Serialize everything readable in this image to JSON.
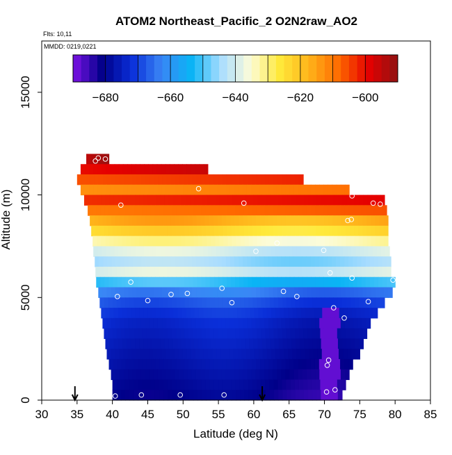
{
  "chart_data": {
    "type": "heatmap",
    "title": "ATOM2 Northeast_Pacific_2 O2N2raw_AO2",
    "annotations": [
      "Flts: 10,11",
      "MMDD: 0219,0221"
    ],
    "xlabel": "Latitude (deg N)",
    "ylabel": "Altitude (m)",
    "xlim": [
      30,
      85
    ],
    "ylim": [
      0,
      17500
    ],
    "xticks": [
      30,
      35,
      40,
      45,
      50,
      55,
      60,
      65,
      70,
      75,
      80,
      85
    ],
    "yticks": [
      0,
      5000,
      10000,
      15000
    ],
    "colorbar": {
      "range": [
        -690,
        -590
      ],
      "ticks": [
        -680,
        -660,
        -640,
        -620,
        -600
      ],
      "stops": [
        "#7d12e6",
        "#000089",
        "#0a2fd9",
        "#3a86f5",
        "#0ab4f5",
        "#a8dcff",
        "#fcfcd9",
        "#ffe93a",
        "#ffb31a",
        "#ff6a00",
        "#e50000",
        "#8f1212"
      ]
    },
    "profiles": [
      {
        "alt": 11750,
        "lat_min": 36.3,
        "lat_max": 39.5,
        "value": -595
      },
      {
        "alt": 11250,
        "lat_min": 35.5,
        "lat_max": 53.5,
        "value": -600
      },
      {
        "alt": 10750,
        "lat_min": 35.0,
        "lat_max": 67.0,
        "value": -606
      },
      {
        "alt": 10250,
        "lat_min": 35.5,
        "lat_max": 73.5,
        "value": -613
      },
      {
        "alt": 9750,
        "lat_min": 36.0,
        "lat_max": 78.5,
        "value": -603
      },
      {
        "alt": 9250,
        "lat_min": 36.5,
        "lat_max": 78.8,
        "value": -610
      },
      {
        "alt": 8750,
        "lat_min": 36.8,
        "lat_max": 79.0,
        "value": -617
      },
      {
        "alt": 8250,
        "lat_min": 37.0,
        "lat_max": 79.0,
        "value": -624
      },
      {
        "alt": 7750,
        "lat_min": 37.2,
        "lat_max": 79.0,
        "value": -633
      },
      {
        "alt": 7250,
        "lat_min": 37.3,
        "lat_max": 79.2,
        "value": -640
      },
      {
        "alt": 6750,
        "lat_min": 37.5,
        "lat_max": 79.4,
        "value": -645
      },
      {
        "alt": 6250,
        "lat_min": 37.6,
        "lat_max": 79.4,
        "value": -640
      },
      {
        "alt": 5750,
        "lat_min": 37.7,
        "lat_max": 80.0,
        "value": -652
      },
      {
        "alt": 5250,
        "lat_min": 38.0,
        "lat_max": 79.6,
        "value": -662
      },
      {
        "alt": 4750,
        "lat_min": 38.2,
        "lat_max": 78.5,
        "value": -667
      },
      {
        "alt": 4250,
        "lat_min": 38.4,
        "lat_max": 77.5,
        "value": -670
      },
      {
        "alt": 3750,
        "lat_min": 38.6,
        "lat_max": 76.5,
        "value": -672
      },
      {
        "alt": 3250,
        "lat_min": 38.8,
        "lat_max": 76.0,
        "value": -673
      },
      {
        "alt": 2750,
        "lat_min": 39.0,
        "lat_max": 75.5,
        "value": -674
      },
      {
        "alt": 2250,
        "lat_min": 39.2,
        "lat_max": 75.0,
        "value": -675
      },
      {
        "alt": 1750,
        "lat_min": 39.5,
        "lat_max": 74.0,
        "value": -676
      },
      {
        "alt": 1250,
        "lat_min": 39.8,
        "lat_max": 73.5,
        "value": -677
      },
      {
        "alt": 750,
        "lat_min": 40.0,
        "lat_max": 73.0,
        "value": -678
      },
      {
        "alt": 250,
        "lat_min": 40.0,
        "lat_max": 72.5,
        "value": -679
      }
    ],
    "samples": [
      {
        "lat": 37.6,
        "alt": 11650
      },
      {
        "lat": 38.0,
        "alt": 11800
      },
      {
        "lat": 39.0,
        "alt": 11750
      },
      {
        "lat": 52.2,
        "alt": 10300
      },
      {
        "lat": 67.8,
        "alt": 10650
      },
      {
        "lat": 73.9,
        "alt": 9950
      },
      {
        "lat": 41.2,
        "alt": 9500
      },
      {
        "lat": 58.6,
        "alt": 9600
      },
      {
        "lat": 76.9,
        "alt": 9600
      },
      {
        "lat": 77.9,
        "alt": 9550
      },
      {
        "lat": 73.3,
        "alt": 8750
      },
      {
        "lat": 73.8,
        "alt": 8800
      },
      {
        "lat": 63.3,
        "alt": 7650
      },
      {
        "lat": 60.3,
        "alt": 7250
      },
      {
        "lat": 69.9,
        "alt": 7300
      },
      {
        "lat": 70.8,
        "alt": 6200
      },
      {
        "lat": 73.9,
        "alt": 5950
      },
      {
        "lat": 79.7,
        "alt": 5850
      },
      {
        "lat": 42.6,
        "alt": 5750
      },
      {
        "lat": 55.5,
        "alt": 5450
      },
      {
        "lat": 64.2,
        "alt": 5300
      },
      {
        "lat": 50.6,
        "alt": 5200
      },
      {
        "lat": 48.3,
        "alt": 5150
      },
      {
        "lat": 66.1,
        "alt": 5050
      },
      {
        "lat": 40.7,
        "alt": 5050
      },
      {
        "lat": 45.0,
        "alt": 4850
      },
      {
        "lat": 56.9,
        "alt": 4750
      },
      {
        "lat": 76.2,
        "alt": 4800
      },
      {
        "lat": 71.3,
        "alt": 4500
      },
      {
        "lat": 72.8,
        "alt": 4000
      },
      {
        "lat": 70.6,
        "alt": 1950
      },
      {
        "lat": 70.4,
        "alt": 1700
      },
      {
        "lat": 70.3,
        "alt": 400
      },
      {
        "lat": 71.5,
        "alt": 500
      },
      {
        "lat": 40.4,
        "alt": 200
      },
      {
        "lat": 44.1,
        "alt": 250
      },
      {
        "lat": 49.6,
        "alt": 250
      },
      {
        "lat": 55.8,
        "alt": 250
      }
    ],
    "markers": [
      {
        "lat": 34.7
      },
      {
        "lat": 61.2
      }
    ]
  }
}
